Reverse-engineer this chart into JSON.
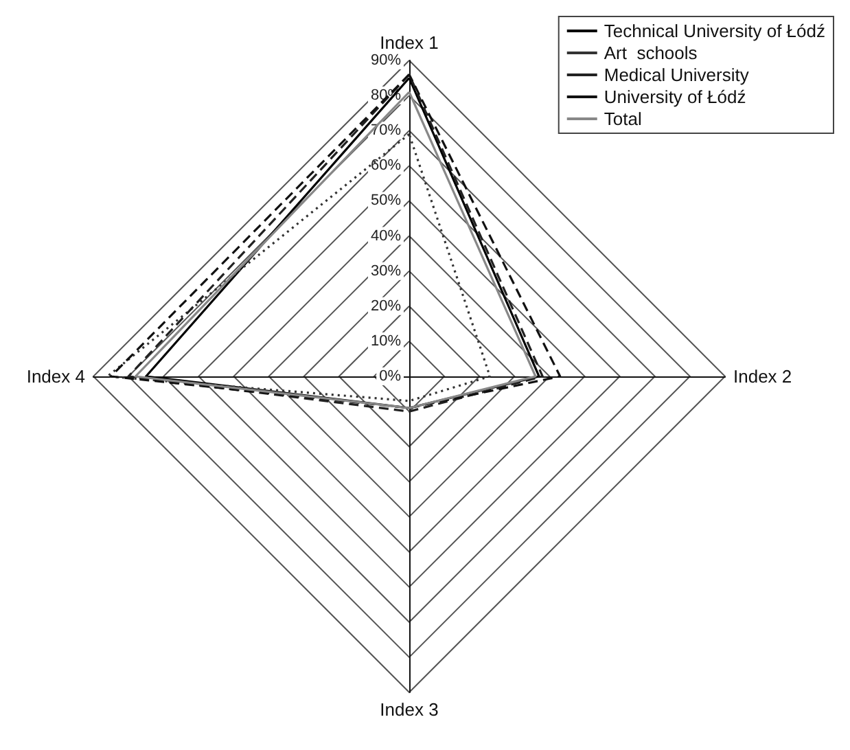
{
  "chart_data": {
    "type": "radar",
    "categories": [
      "Index 1",
      "Index 2",
      "Index 3",
      "Index 4"
    ],
    "ylim": [
      0,
      90
    ],
    "yticks": [
      {
        "value": 0,
        "label": "0%"
      },
      {
        "value": 10,
        "label": "10%"
      },
      {
        "value": 20,
        "label": "20%"
      },
      {
        "value": 30,
        "label": "30%"
      },
      {
        "value": 40,
        "label": "40%"
      },
      {
        "value": 50,
        "label": "50%"
      },
      {
        "value": 60,
        "label": "60%"
      },
      {
        "value": 70,
        "label": "70%"
      },
      {
        "value": 80,
        "label": "80%"
      },
      {
        "value": 90,
        "label": "90%"
      }
    ],
    "legend": "top right",
    "marker": "none",
    "series": [
      {
        "name": "Technical University of Łódź",
        "color": "#000000",
        "line_style": "solid",
        "values": [
          85,
          37,
          9,
          75
        ]
      },
      {
        "name": "Art  schools",
        "color": "#333333",
        "line_style": "dotted",
        "values": [
          69,
          23,
          7,
          86
        ]
      },
      {
        "name": "Medical University",
        "color": "#222222",
        "line_style": "dashed",
        "values": [
          86,
          38,
          10,
          80
        ]
      },
      {
        "name": "University of Łódź",
        "color": "#111111",
        "line_style": "dashed",
        "values": [
          86,
          43,
          9,
          85
        ]
      },
      {
        "name": "Total",
        "color": "#888888",
        "line_style": "solid",
        "values": [
          81,
          36,
          9,
          78
        ]
      }
    ]
  }
}
